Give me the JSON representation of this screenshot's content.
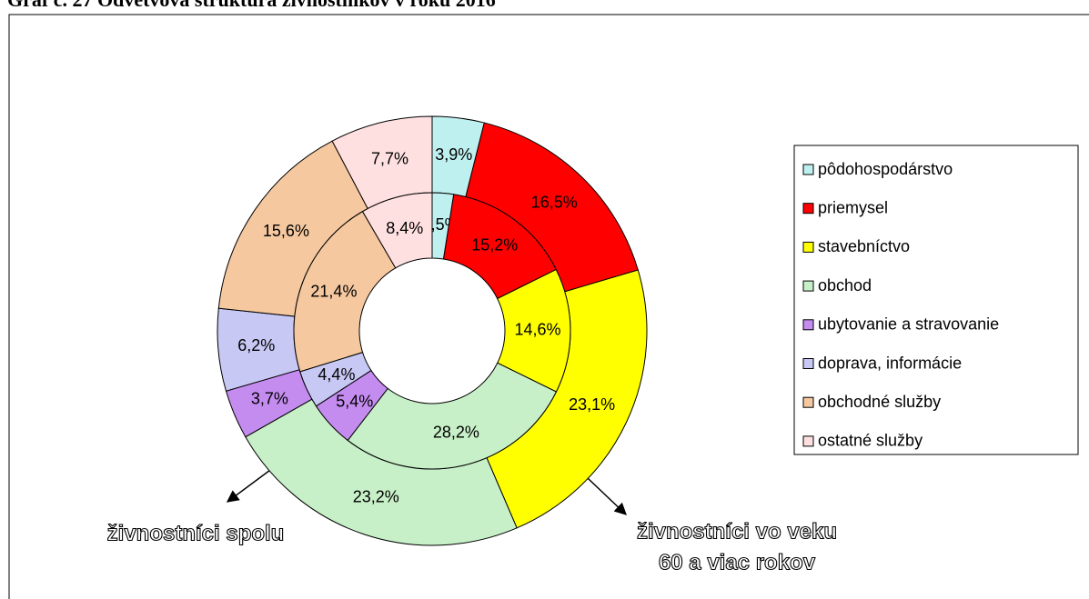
{
  "chart_data": {
    "type": "doughnut",
    "title": "Graf č. 27 Odvetvová štruktúra živnostníkov v roku 2016",
    "categories": [
      "pôdohospodárstvo",
      "priemysel",
      "stavebníctvo",
      "obchod",
      "ubytovanie a stravovanie",
      "doprava, informácie",
      "obchodné služby",
      "ostatné služby"
    ],
    "colors": [
      "#bff0f0",
      "#ff0000",
      "#ffff00",
      "#c8f0c8",
      "#c58cf0",
      "#c8c8f5",
      "#f5c8a0",
      "#ffe0e0"
    ],
    "series": [
      {
        "name": [
          "živnostníci spolu"
        ],
        "values": [
          3.9,
          16.5,
          23.1,
          23.2,
          3.7,
          6.2,
          15.6,
          7.7
        ],
        "value_labels": [
          "3,9%",
          "16,5%",
          "23,1%",
          "23,2%",
          "3,7%",
          "6,2%",
          "15,6%",
          "7,7%"
        ]
      },
      {
        "name": [
          "živnostníci vo veku",
          "60 a viac rokov"
        ],
        "values": [
          2.5,
          15.2,
          14.6,
          28.2,
          5.4,
          4.4,
          21.4,
          8.4
        ],
        "value_labels": [
          "2,5%",
          "15,2%",
          "14,6%",
          "28,2%",
          "5,4%",
          "4,4%",
          "21,4%",
          "8,4%"
        ]
      }
    ],
    "legend": "right"
  }
}
